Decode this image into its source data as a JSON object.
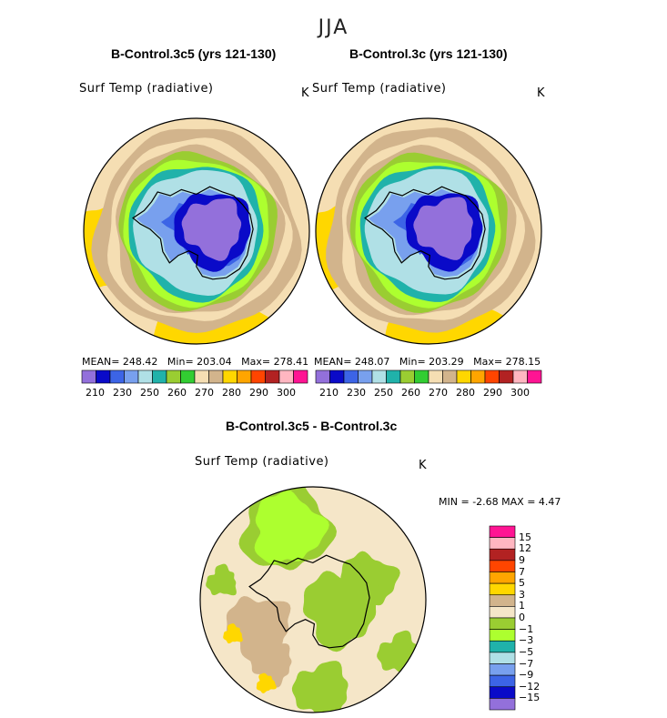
{
  "figure": {
    "title": "JJA",
    "colors": {
      "abs": [
        "#9370db",
        "#0a0ac8",
        "#3c64e6",
        "#78a0ee",
        "#b0e0e6",
        "#20b2aa",
        "#9acd32",
        "#32cd32",
        "#f5deb3",
        "#d2b48c",
        "#ffd700",
        "#ffa500",
        "#ff4500",
        "#b22222",
        "#ffb6c1",
        "#ff1493"
      ],
      "diff": [
        "#9370db",
        "#0a0ac8",
        "#3c64e6",
        "#78a0ee",
        "#b0e0e6",
        "#20b2aa",
        "#adff2f",
        "#9acd32",
        "#f5e6c8",
        "#d2b48c",
        "#ffd700",
        "#ffa500",
        "#ff4500",
        "#b22222",
        "#ffb6c1",
        "#ff1493"
      ],
      "land": "#000000"
    }
  },
  "chart_data": [
    {
      "type": "heatmap",
      "projection": "south-polar-stereographic",
      "title": "B-Control.3c5 (yrs 121-130)",
      "variable": "Surf Temp (radiative)",
      "units": "K",
      "stats": {
        "mean_label": "MEAN=",
        "mean": "248.42",
        "min_label": "Min=",
        "min": "203.04",
        "max_label": "Max=",
        "max": "278.41"
      },
      "colorbar_ticks": [
        "210",
        "230",
        "250",
        "260",
        "270",
        "280",
        "290",
        "300"
      ],
      "contour_levels": [
        210,
        220,
        230,
        240,
        250,
        255,
        260,
        265,
        270,
        275,
        280,
        285,
        290,
        295,
        300
      ]
    },
    {
      "type": "heatmap",
      "projection": "south-polar-stereographic",
      "title": "B-Control.3c (yrs 121-130)",
      "variable": "Surf Temp (radiative)",
      "units": "K",
      "stats": {
        "mean_label": "MEAN=",
        "mean": "248.07",
        "min_label": "Min=",
        "min": "203.29",
        "max_label": "Max=",
        "max": "278.15"
      },
      "colorbar_ticks": [
        "210",
        "230",
        "250",
        "260",
        "270",
        "280",
        "290",
        "300"
      ],
      "contour_levels": [
        210,
        220,
        230,
        240,
        250,
        255,
        260,
        265,
        270,
        275,
        280,
        285,
        290,
        295,
        300
      ]
    },
    {
      "type": "heatmap",
      "projection": "south-polar-stereographic",
      "title": "B-Control.3c5 - B-Control.3c",
      "variable": "Surf Temp (radiative)",
      "units": "K",
      "stats": {
        "min_label": "MIN =",
        "min": "-2.68",
        "max_label": "MAX =",
        "max": "4.47"
      },
      "colorbar_ticks": [
        "15",
        "12",
        "9",
        "7",
        "5",
        "3",
        "1",
        "0",
        "−1",
        "−3",
        "−5",
        "−7",
        "−9",
        "−12",
        "−15"
      ],
      "contour_levels": [
        -15,
        -12,
        -9,
        -7,
        -5,
        -3,
        -1,
        0,
        1,
        3,
        5,
        7,
        9,
        12,
        15
      ]
    }
  ]
}
